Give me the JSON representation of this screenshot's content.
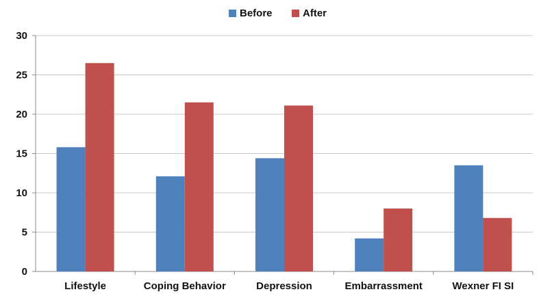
{
  "chart_data": {
    "type": "bar",
    "title": "",
    "xlabel": "",
    "ylabel": "",
    "categories": [
      "Lifestyle",
      "Coping Behavior",
      "Depression",
      "Embarrassment",
      "Wexner FI SI"
    ],
    "series": [
      {
        "name": "Before",
        "values": [
          15.8,
          12.1,
          14.4,
          4.2,
          13.5
        ],
        "color": "#4F81BD"
      },
      {
        "name": "After",
        "values": [
          26.5,
          21.5,
          21.1,
          8.0,
          6.8
        ],
        "color": "#C0504D"
      }
    ],
    "ylim": [
      0,
      30
    ],
    "yticks": [
      0,
      5,
      10,
      15,
      20,
      25,
      30
    ],
    "grid": true,
    "legend": "top-center"
  }
}
